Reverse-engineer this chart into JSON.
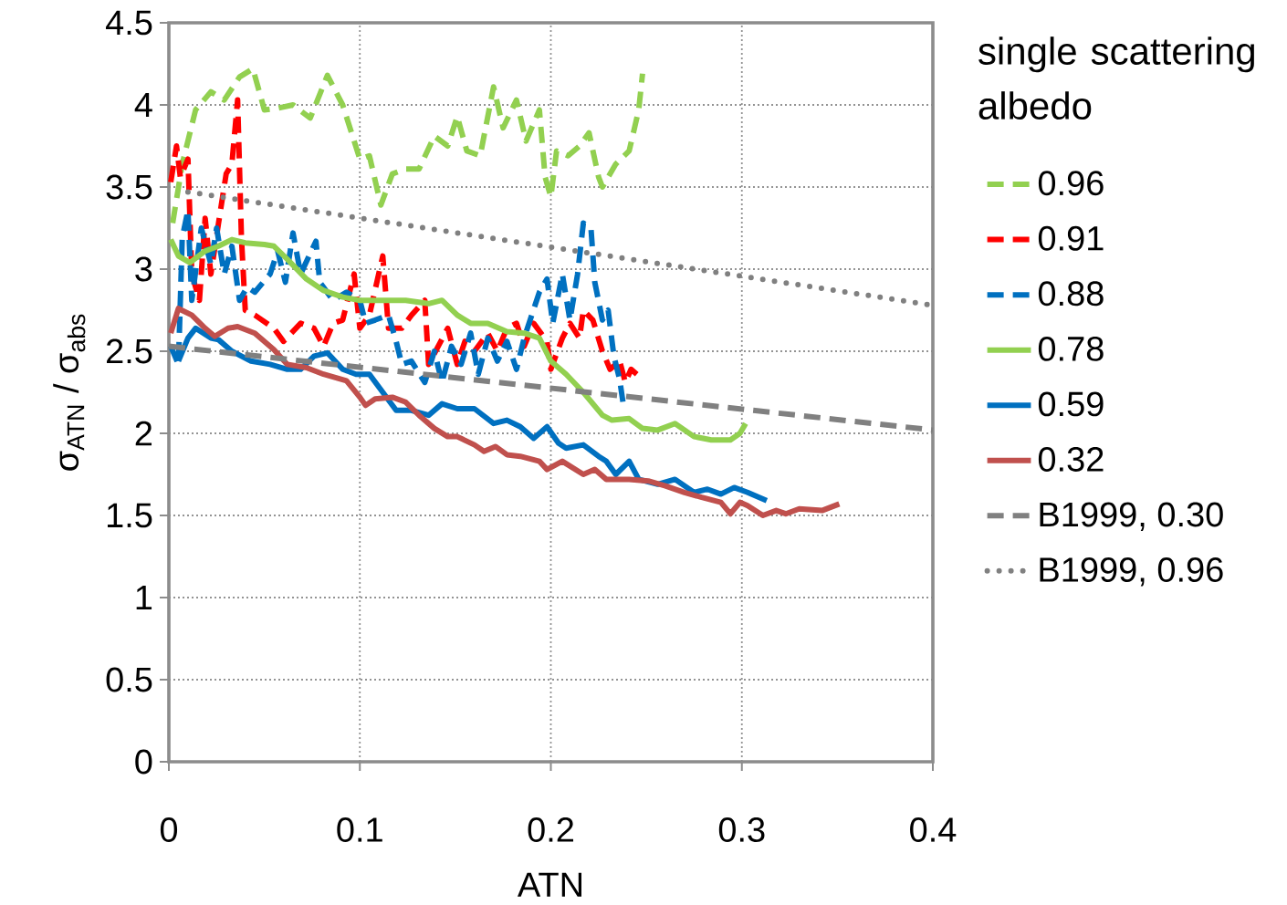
{
  "chart_data": {
    "type": "line",
    "xlabel": "ATN",
    "ylabel": "σ$_{ATN}$ / σ$_{abs}$",
    "legend_title": "single scattering albedo",
    "xlim": [
      0,
      0.4
    ],
    "ylim": [
      0,
      4.5
    ],
    "xticks": [
      0,
      0.1,
      0.2,
      0.3,
      0.4
    ],
    "yticks": [
      0,
      0.5,
      1,
      1.5,
      2,
      2.5,
      3,
      3.5,
      4,
      4.5
    ],
    "grid": true,
    "legend": "right",
    "series": [
      {
        "name": "0.96",
        "color": "#92d050",
        "line_style": "dashed",
        "x": [
          0.002,
          0.007,
          0.014,
          0.022,
          0.029,
          0.037,
          0.044,
          0.05,
          0.057,
          0.065,
          0.074,
          0.083,
          0.091,
          0.1,
          0.105,
          0.111,
          0.117,
          0.124,
          0.131,
          0.139,
          0.146,
          0.151,
          0.156,
          0.163,
          0.17,
          0.175,
          0.182,
          0.187,
          0.194,
          0.197,
          0.2,
          0.203,
          0.209,
          0.215,
          0.22,
          0.225,
          0.227,
          0.234,
          0.241,
          0.246,
          0.248
        ],
        "values": [
          3.28,
          3.64,
          3.97,
          4.08,
          4.03,
          4.17,
          4.22,
          3.97,
          3.98,
          4.0,
          3.92,
          4.18,
          4.0,
          3.67,
          3.69,
          3.39,
          3.58,
          3.61,
          3.61,
          3.81,
          3.75,
          3.93,
          3.72,
          3.69,
          4.11,
          3.86,
          4.03,
          3.78,
          3.97,
          3.56,
          3.44,
          3.72,
          3.69,
          3.75,
          3.83,
          3.56,
          3.5,
          3.64,
          3.72,
          3.97,
          4.19
        ]
      },
      {
        "name": "0.91",
        "color": "#ff0000",
        "line_style": "dashed",
        "x": [
          0.001,
          0.004,
          0.006,
          0.01,
          0.012,
          0.016,
          0.019,
          0.022,
          0.026,
          0.03,
          0.033,
          0.036,
          0.038,
          0.04,
          0.045,
          0.055,
          0.06,
          0.069,
          0.076,
          0.081,
          0.086,
          0.091,
          0.097,
          0.1,
          0.105,
          0.112,
          0.115,
          0.122,
          0.127,
          0.134,
          0.136,
          0.141,
          0.146,
          0.151,
          0.155,
          0.16,
          0.167,
          0.172,
          0.177,
          0.182,
          0.186,
          0.191,
          0.198,
          0.2,
          0.206,
          0.21,
          0.215,
          0.217,
          0.222,
          0.227,
          0.231,
          0.236,
          0.239,
          0.242,
          0.245
        ],
        "values": [
          3.53,
          3.75,
          3.56,
          3.67,
          2.97,
          2.81,
          3.31,
          2.97,
          3.28,
          3.58,
          3.64,
          4.03,
          3.19,
          2.75,
          2.72,
          2.64,
          2.56,
          2.67,
          2.64,
          2.53,
          2.67,
          2.69,
          2.97,
          2.64,
          2.72,
          3.08,
          2.64,
          2.64,
          2.72,
          2.81,
          2.42,
          2.53,
          2.64,
          2.42,
          2.56,
          2.5,
          2.61,
          2.5,
          2.64,
          2.67,
          2.53,
          2.67,
          2.56,
          2.39,
          2.58,
          2.67,
          2.58,
          2.75,
          2.69,
          2.5,
          2.39,
          2.44,
          2.31,
          2.39,
          2.36
        ]
      },
      {
        "name": "0.88",
        "color": "#0070c0",
        "line_style": "dashed",
        "x": [
          0.001,
          0.005,
          0.007,
          0.01,
          0.012,
          0.017,
          0.022,
          0.025,
          0.029,
          0.033,
          0.037,
          0.041,
          0.045,
          0.053,
          0.057,
          0.061,
          0.065,
          0.069,
          0.077,
          0.079,
          0.086,
          0.093,
          0.1,
          0.103,
          0.108,
          0.115,
          0.119,
          0.122,
          0.127,
          0.134,
          0.139,
          0.143,
          0.148,
          0.153,
          0.158,
          0.162,
          0.167,
          0.172,
          0.177,
          0.182,
          0.186,
          0.194,
          0.198,
          0.201,
          0.206,
          0.21,
          0.214,
          0.217,
          0.221,
          0.223,
          0.227,
          0.23,
          0.233,
          0.236,
          0.238
        ],
        "values": [
          2.53,
          2.42,
          3.19,
          3.36,
          2.81,
          3.25,
          3.03,
          3.25,
          2.97,
          3.14,
          2.81,
          2.89,
          2.86,
          2.97,
          3.11,
          2.92,
          3.22,
          2.97,
          3.17,
          2.92,
          2.81,
          2.86,
          2.81,
          2.67,
          2.69,
          2.72,
          2.56,
          2.42,
          2.44,
          2.31,
          2.5,
          2.31,
          2.53,
          2.42,
          2.61,
          2.36,
          2.58,
          2.44,
          2.56,
          2.39,
          2.58,
          2.86,
          2.94,
          2.67,
          2.97,
          2.69,
          2.97,
          3.28,
          3.25,
          2.92,
          2.69,
          2.75,
          2.47,
          2.33,
          2.17
        ]
      },
      {
        "name": "0.78",
        "color": "#92d050",
        "line_style": "solid",
        "x": [
          0.001,
          0.005,
          0.011,
          0.019,
          0.026,
          0.033,
          0.04,
          0.05,
          0.055,
          0.062,
          0.072,
          0.081,
          0.091,
          0.1,
          0.112,
          0.124,
          0.136,
          0.143,
          0.151,
          0.158,
          0.167,
          0.177,
          0.186,
          0.194,
          0.2,
          0.208,
          0.217,
          0.227,
          0.232,
          0.241,
          0.248,
          0.256,
          0.265,
          0.275,
          0.284,
          0.294,
          0.299,
          0.302
        ],
        "values": [
          3.18,
          3.08,
          3.04,
          3.11,
          3.14,
          3.18,
          3.16,
          3.15,
          3.14,
          3.06,
          2.94,
          2.87,
          2.83,
          2.81,
          2.81,
          2.81,
          2.79,
          2.81,
          2.72,
          2.67,
          2.67,
          2.62,
          2.61,
          2.58,
          2.44,
          2.36,
          2.25,
          2.11,
          2.08,
          2.09,
          2.03,
          2.02,
          2.06,
          1.98,
          1.96,
          1.96,
          2.0,
          2.06
        ]
      },
      {
        "name": "0.59",
        "color": "#0070c0",
        "line_style": "solid",
        "x": [
          0.005,
          0.01,
          0.014,
          0.022,
          0.026,
          0.033,
          0.043,
          0.053,
          0.062,
          0.069,
          0.076,
          0.083,
          0.091,
          0.098,
          0.105,
          0.112,
          0.119,
          0.127,
          0.136,
          0.143,
          0.151,
          0.16,
          0.17,
          0.177,
          0.184,
          0.191,
          0.198,
          0.204,
          0.208,
          0.217,
          0.225,
          0.229,
          0.234,
          0.241,
          0.246,
          0.256,
          0.265,
          0.275,
          0.282,
          0.289,
          0.296,
          0.303,
          0.313
        ],
        "values": [
          2.44,
          2.58,
          2.64,
          2.58,
          2.57,
          2.5,
          2.44,
          2.42,
          2.39,
          2.39,
          2.47,
          2.49,
          2.39,
          2.36,
          2.36,
          2.25,
          2.14,
          2.14,
          2.11,
          2.18,
          2.15,
          2.15,
          2.06,
          2.08,
          2.04,
          1.97,
          2.04,
          1.94,
          1.91,
          1.93,
          1.86,
          1.83,
          1.75,
          1.83,
          1.72,
          1.69,
          1.72,
          1.64,
          1.66,
          1.63,
          1.67,
          1.64,
          1.59
        ]
      },
      {
        "name": "0.32",
        "color": "#c0504d",
        "line_style": "solid",
        "x": [
          0.001,
          0.005,
          0.012,
          0.019,
          0.024,
          0.031,
          0.036,
          0.045,
          0.055,
          0.062,
          0.072,
          0.081,
          0.093,
          0.1,
          0.103,
          0.108,
          0.117,
          0.124,
          0.131,
          0.139,
          0.146,
          0.151,
          0.16,
          0.165,
          0.171,
          0.177,
          0.184,
          0.194,
          0.198,
          0.206,
          0.217,
          0.223,
          0.229,
          0.241,
          0.251,
          0.26,
          0.27,
          0.279,
          0.289,
          0.294,
          0.299,
          0.303,
          0.311,
          0.318,
          0.323,
          0.33,
          0.342,
          0.351
        ],
        "values": [
          2.61,
          2.76,
          2.72,
          2.64,
          2.59,
          2.64,
          2.65,
          2.61,
          2.51,
          2.42,
          2.4,
          2.36,
          2.32,
          2.22,
          2.17,
          2.21,
          2.22,
          2.19,
          2.11,
          2.03,
          1.98,
          1.98,
          1.93,
          1.89,
          1.92,
          1.87,
          1.86,
          1.83,
          1.78,
          1.83,
          1.75,
          1.78,
          1.72,
          1.72,
          1.71,
          1.68,
          1.64,
          1.61,
          1.58,
          1.51,
          1.58,
          1.56,
          1.5,
          1.53,
          1.51,
          1.54,
          1.53,
          1.57
        ]
      },
      {
        "name": "B1999, 0.30",
        "color": "#808080",
        "line_style": "dashed",
        "x": [
          0,
          0.4
        ],
        "values": [
          2.53,
          2.02
        ]
      },
      {
        "name": "B1999, 0.96",
        "color": "#808080",
        "line_style": "dotted",
        "x": [
          0.01,
          0.4
        ],
        "values": [
          3.47,
          2.78
        ]
      }
    ]
  }
}
